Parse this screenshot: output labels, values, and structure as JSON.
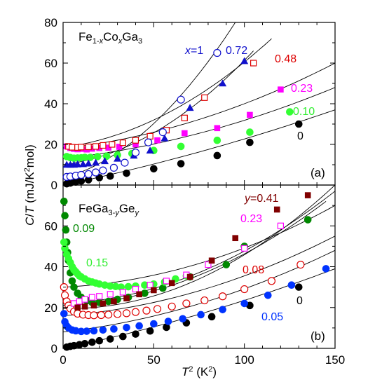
{
  "chart_data": [
    {
      "type": "scatter",
      "title": "Fe1-xCoxGa3",
      "panel_label": "(a)",
      "ylabel": "C/T (mJ/K²mol)",
      "xlabel": "",
      "xlim": [
        0,
        150
      ],
      "ylim": [
        0,
        80
      ],
      "y_ticks": [
        0,
        20,
        40,
        60,
        80
      ],
      "series": [
        {
          "name": "0",
          "color": "#000000",
          "marker": "filled-circle",
          "x": [
            2,
            4,
            7,
            10,
            14,
            20,
            26,
            35,
            50,
            65,
            85,
            103,
            130
          ],
          "y": [
            0.6,
            1.0,
            1.5,
            2.0,
            2.6,
            3.6,
            4.4,
            5.8,
            8.0,
            10.5,
            14.5,
            21,
            30
          ],
          "fit": {
            "x": [
              0,
              150
            ],
            "y": [
              0,
              37
            ],
            "curvature": 0.0004
          }
        },
        {
          "name": "0.10",
          "color": "#33ff33",
          "marker": "filled-circle",
          "x": [
            2,
            4,
            6,
            8,
            10,
            12,
            15,
            19,
            24,
            30,
            38,
            50,
            65,
            85,
            103,
            125
          ],
          "y": [
            14,
            13.5,
            13.2,
            13.3,
            13.4,
            13.6,
            13.6,
            14,
            14.2,
            14.8,
            15.5,
            17,
            19,
            22,
            26,
            36
          ],
          "fit": {
            "x": [
              0,
              150
            ],
            "y": [
              13,
              48
            ],
            "curvature": 0.0009
          }
        },
        {
          "name": "0.23",
          "color": "#ff00ff",
          "marker": "filled-square",
          "x": [
            2,
            4,
            6,
            8,
            10,
            13,
            16,
            20,
            25,
            31,
            40,
            52,
            67,
            85,
            103,
            120
          ],
          "y": [
            19,
            18.2,
            17.8,
            17.6,
            17.8,
            17.5,
            17.9,
            18.2,
            18.4,
            18.8,
            20,
            22,
            25.5,
            28,
            34.5,
            47
          ],
          "fit": {
            "x": [
              0,
              150
            ],
            "y": [
              18,
              60
            ],
            "curvature": 0.0012
          }
        },
        {
          "name": "0.48",
          "color": "#dd0000",
          "marker": "open-square",
          "x": [
            3,
            5,
            8,
            10,
            14,
            18,
            22,
            27,
            33,
            40,
            48,
            57,
            67,
            78,
            105
          ],
          "y": [
            19,
            18.6,
            18.5,
            18.7,
            18.8,
            19,
            19.5,
            20,
            20.8,
            22,
            24,
            27,
            33,
            43,
            60
          ],
          "fit": {
            "x": [
              0,
              115
            ],
            "y": [
              18.5,
              72
            ],
            "curvature": 0.003
          }
        },
        {
          "name": "0.72",
          "color": "#1010cc",
          "marker": "filled-triangle",
          "x": [
            2,
            4,
            6,
            8,
            11,
            14,
            18,
            23,
            30,
            39,
            48,
            56,
            70,
            88,
            100
          ],
          "y": [
            10,
            10,
            10,
            10.2,
            10.3,
            10.6,
            11,
            11.8,
            13,
            14.5,
            17,
            23,
            38,
            50,
            61
          ],
          "fit": {
            "x": [
              0,
              105
            ],
            "y": [
              10,
              66
            ],
            "curvature": 0.004
          }
        },
        {
          "name": "x=1",
          "color": "#1010cc",
          "marker": "open-circle",
          "x": [
            2,
            4,
            7,
            10,
            14,
            18,
            22,
            28,
            34,
            40,
            47,
            55,
            65,
            85
          ],
          "y": [
            4,
            4.2,
            4.6,
            5,
            5.4,
            6.2,
            7.2,
            8.5,
            11,
            16,
            21,
            26,
            42,
            65
          ],
          "fit": {
            "x": [
              0,
              95
            ],
            "y": [
              3.5,
              80
            ],
            "curvature": 0.006
          }
        }
      ],
      "annotations": [
        "x=1",
        "0.72",
        "0.48",
        "0.23",
        "0.10",
        "0"
      ]
    },
    {
      "type": "scatter",
      "title": "FeGa3-yGey",
      "panel_label": "(b)",
      "ylabel": "C/T (mJ/K²mol)",
      "xlabel": "T² (K²)",
      "xlim": [
        0,
        150
      ],
      "ylim": [
        0,
        80
      ],
      "x_ticks": [
        0,
        50,
        100,
        150
      ],
      "y_ticks": [
        0,
        20,
        40,
        60
      ],
      "series": [
        {
          "name": "0",
          "color": "#000000",
          "marker": "filled-circle",
          "x": [
            2,
            4,
            6,
            9,
            12,
            16,
            20,
            26,
            33,
            40,
            48,
            57,
            68,
            82,
            103,
            130
          ],
          "y": [
            0.6,
            1.0,
            1.3,
            1.8,
            2.3,
            3.0,
            3.7,
            4.6,
            5.8,
            7.0,
            8.5,
            10.3,
            12.5,
            15.5,
            21,
            30
          ],
          "fit": {
            "x": [
              0,
              150
            ],
            "y": [
              0,
              39
            ],
            "curvature": 0.0005
          }
        },
        {
          "name": "0.05",
          "color": "#0033ff",
          "marker": "filled-circle",
          "x": [
            0.5,
            1,
            2,
            3,
            5,
            7,
            10,
            13,
            17,
            22,
            28,
            35,
            42,
            50,
            58,
            66,
            76,
            88,
            100,
            113,
            126,
            145
          ],
          "y": [
            17,
            13,
            11,
            10,
            9,
            8.6,
            8.3,
            8.4,
            8.6,
            9,
            9.5,
            10.2,
            11,
            12,
            13.2,
            14.5,
            16.5,
            19,
            22,
            26,
            31,
            39
          ],
          "fit": {
            "x": [
              0,
              150
            ],
            "y": [
              8,
              48
            ],
            "curvature": 0.0011
          }
        },
        {
          "name": "0.08",
          "color": "#dd0000",
          "marker": "open-circle",
          "x": [
            0.5,
            1,
            2,
            3,
            4,
            6,
            8,
            11,
            14,
            17,
            21,
            25,
            30,
            35,
            40,
            46,
            52,
            60,
            68,
            78,
            88,
            100,
            115,
            131
          ],
          "y": [
            30,
            26,
            23,
            21,
            19.5,
            18,
            17,
            16.5,
            16.3,
            16.2,
            16.3,
            16.5,
            16.8,
            17.2,
            17.8,
            18.5,
            19.3,
            20.5,
            22,
            23.5,
            25.5,
            29,
            33,
            41
          ],
          "fit": {
            "x": [
              0,
              150
            ],
            "y": [
              16,
              55
            ],
            "curvature": 0.0013
          }
        },
        {
          "name": "0.09",
          "color": "#008800",
          "marker": "filled-circle",
          "x": [
            0.5,
            1,
            1.5,
            2,
            2.5,
            3,
            4,
            5,
            6,
            8,
            10,
            13,
            16,
            20,
            25,
            30,
            36,
            45,
            55,
            70,
            90,
            100,
            135
          ],
          "y": [
            72,
            65,
            58,
            52,
            47,
            43,
            37,
            33,
            30,
            27,
            25,
            23.5,
            22.5,
            22.5,
            23,
            24,
            25,
            27,
            29.5,
            35,
            41,
            50,
            63
          ],
          "fit": {
            "x": [
              0,
              145
            ],
            "y": [
              21,
              72
            ],
            "curvature": 0.0022
          }
        },
        {
          "name": "0.15",
          "color": "#33ff33",
          "marker": "filled-circle",
          "x": [
            0.5,
            1,
            2,
            3,
            4,
            5,
            6,
            7,
            8,
            9,
            10,
            12,
            14,
            16,
            18,
            20,
            23,
            26,
            29,
            32,
            36,
            40,
            45,
            50,
            56,
            62,
            68
          ],
          "y": [
            52,
            49,
            46,
            44,
            42,
            40,
            38.5,
            37.5,
            36.5,
            35.5,
            35,
            34,
            33,
            32.5,
            32,
            31.5,
            31,
            30.5,
            30.3,
            30,
            30.2,
            30.5,
            31,
            31.5,
            32.5,
            34,
            35.5
          ],
          "fit": {
            "x": [
              0,
              150
            ],
            "y": [
              30,
              70
            ],
            "curvature": 0.0015
          }
        },
        {
          "name": "0.23",
          "color": "#ff00ff",
          "marker": "open-square",
          "x": [
            6,
            9,
            12,
            16,
            20,
            26,
            33,
            40,
            48,
            57,
            68,
            80,
            100,
            120
          ],
          "y": [
            22,
            23,
            24,
            25,
            25.5,
            26.5,
            27.5,
            29,
            31,
            33,
            36,
            41,
            49,
            60
          ],
          "fit": {
            "x": [
              0,
              150
            ],
            "y": [
              22,
              77
            ],
            "curvature": 0.0022
          }
        },
        {
          "name": "y=0.41",
          "color": "#800000",
          "marker": "filled-square",
          "x": [
            8,
            12,
            17,
            22,
            28,
            35,
            42,
            50,
            60,
            70,
            82,
            95,
            118,
            135
          ],
          "y": [
            20,
            20.5,
            21,
            22,
            23,
            24.5,
            26.5,
            28.5,
            32,
            35,
            43,
            54,
            68,
            75
          ],
          "fit": {
            "x": [
              0,
              150
            ],
            "y": [
              19.5,
              80
            ],
            "curvature": 0.0028
          }
        }
      ],
      "annotations": [
        "y=0.41",
        "0.23",
        "0.09",
        "0.15",
        "0.08",
        "0",
        "0.05"
      ]
    }
  ]
}
